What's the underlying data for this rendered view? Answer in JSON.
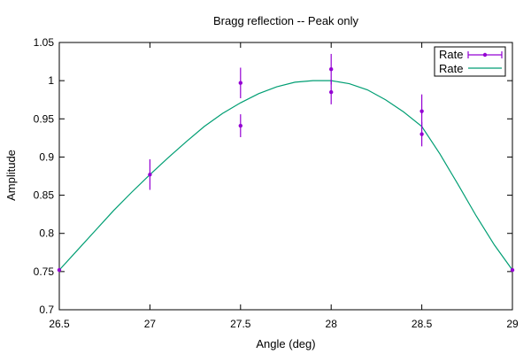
{
  "chart_data": {
    "type": "scatter",
    "title": "Bragg reflection -- Peak only",
    "xlabel": "Angle (deg)",
    "ylabel": "Amplitude",
    "xlim": [
      26.5,
      29
    ],
    "ylim": [
      0.7,
      1.05
    ],
    "x_ticks": [
      "26.5",
      "27",
      "27.5",
      "28",
      "28.5",
      "29"
    ],
    "y_ticks": [
      "0.7",
      "0.75",
      "0.8",
      "0.85",
      "0.9",
      "0.95",
      "1",
      "1.05"
    ],
    "grid": false,
    "legend_position": "top-right",
    "series": [
      {
        "name": "Rate",
        "style": "points-with-errorbars",
        "color": "#9400d3",
        "points": [
          {
            "x": 26.5,
            "y": 0.752,
            "err": 0.0
          },
          {
            "x": 27.0,
            "y": 0.877,
            "err": 0.02
          },
          {
            "x": 27.5,
            "y": 0.997,
            "err": 0.02
          },
          {
            "x": 27.5,
            "y": 0.941,
            "err": 0.015
          },
          {
            "x": 28.0,
            "y": 1.015,
            "err": 0.02
          },
          {
            "x": 28.0,
            "y": 0.985,
            "err": 0.016
          },
          {
            "x": 28.5,
            "y": 0.96,
            "err": 0.022
          },
          {
            "x": 28.5,
            "y": 0.93,
            "err": 0.016
          },
          {
            "x": 29.0,
            "y": 0.752,
            "err": 0.0
          }
        ]
      },
      {
        "name": "Rate",
        "style": "line",
        "color": "#009e73",
        "x": [
          26.5,
          26.6,
          26.7,
          26.8,
          26.9,
          27.0,
          27.1,
          27.2,
          27.3,
          27.4,
          27.5,
          27.6,
          27.7,
          27.8,
          27.9,
          28.0,
          28.1,
          28.2,
          28.3,
          28.4,
          28.5,
          28.6,
          28.7,
          28.8,
          28.9,
          29.0
        ],
        "y": [
          0.752,
          0.778,
          0.804,
          0.83,
          0.854,
          0.877,
          0.899,
          0.92,
          0.94,
          0.957,
          0.971,
          0.983,
          0.992,
          0.998,
          1.0,
          1.0,
          0.996,
          0.988,
          0.975,
          0.959,
          0.94,
          0.904,
          0.864,
          0.823,
          0.785,
          0.752
        ]
      }
    ]
  }
}
